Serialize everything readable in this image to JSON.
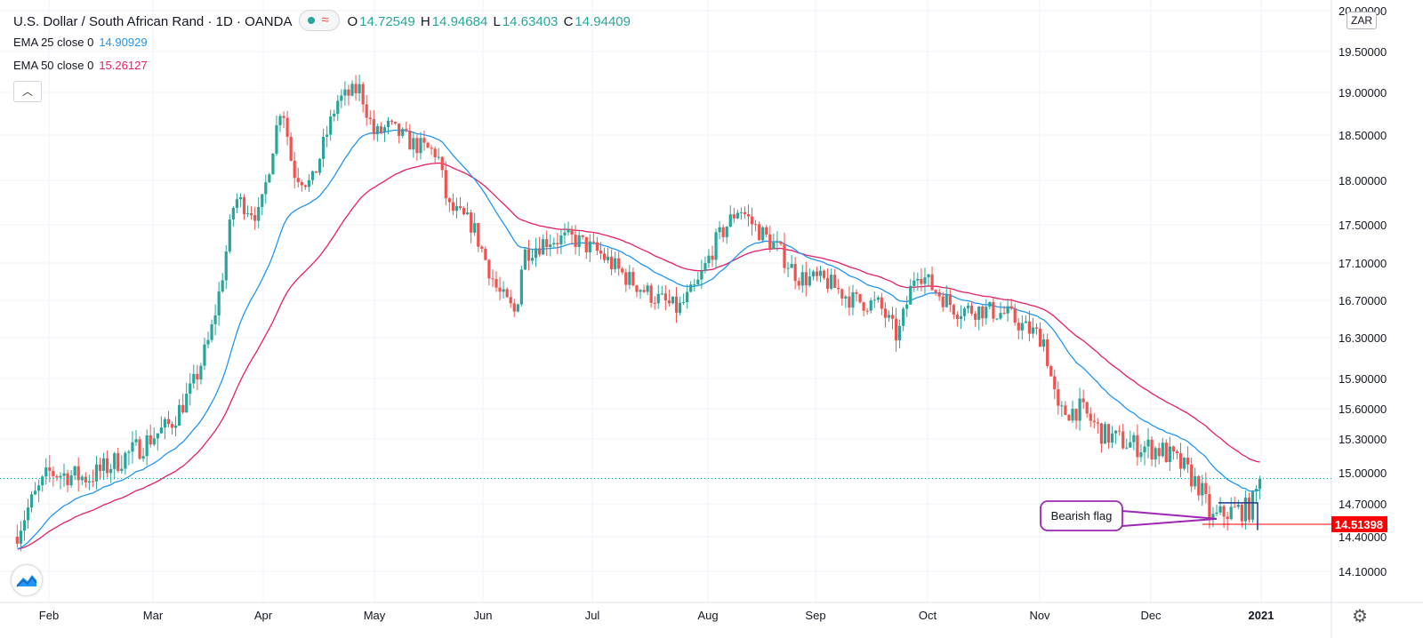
{
  "header": {
    "symbol_title": "U.S. Dollar / South African Rand · 1D · OANDA",
    "ohlc": {
      "o_label": "O",
      "o": "14.72549",
      "h_label": "H",
      "h": "14.94684",
      "l_label": "L",
      "l": "14.63403",
      "c_label": "C",
      "c": "14.94409"
    },
    "indicators": [
      {
        "label": "EMA 25 close 0",
        "value": "14.90929",
        "color": "#2196f3"
      },
      {
        "label": "EMA 50 close 0",
        "value": "15.26127",
        "color": "#e91e63"
      }
    ],
    "currency_badge": "ZAR"
  },
  "colors": {
    "up": "#26a69a",
    "down": "#ef5350",
    "ema25": "#2196f3",
    "ema50": "#e91e63",
    "annotation": "#9c27b0",
    "price_tag": "#ff0000"
  },
  "icons": {
    "collapse": "chevron-up-icon",
    "logo": "tradingview-logo-icon",
    "settings": "gear-icon"
  },
  "chart_data": {
    "type": "candlestick",
    "y_ticks": [
      "20.00000",
      "19.50000",
      "19.00000",
      "18.50000",
      "18.00000",
      "17.50000",
      "17.10000",
      "16.70000",
      "16.30000",
      "15.90000",
      "15.60000",
      "15.30000",
      "15.00000",
      "14.70000",
      "14.40000",
      "14.10000"
    ],
    "x_ticks": [
      "Feb",
      "Mar",
      "Apr",
      "May",
      "Jun",
      "Jul",
      "Aug",
      "Sep",
      "Oct",
      "Nov",
      "Dec",
      "2021"
    ],
    "price_label": "14.51398",
    "last_close": 14.94409,
    "annotation": {
      "text": "Bearish flag",
      "flag_top": 14.71,
      "flag_bottom": 14.46
    },
    "close_anchors": [
      [
        "Jan 15",
        14.45
      ],
      [
        "Jan 22",
        14.7
      ],
      [
        "Feb 1",
        15.0
      ],
      [
        "Feb 12",
        14.95
      ],
      [
        "Feb 25",
        15.2
      ],
      [
        "Mar 6",
        15.45
      ],
      [
        "Mar 12",
        15.8
      ],
      [
        "Mar 17",
        16.3
      ],
      [
        "Mar 20",
        16.85
      ],
      [
        "Mar 24",
        17.8
      ],
      [
        "Mar 31",
        17.6
      ],
      [
        "Apr 6",
        18.9
      ],
      [
        "Apr 9",
        18.1
      ],
      [
        "Apr 14",
        17.95
      ],
      [
        "Apr 21",
        18.9
      ],
      [
        "Apr 27",
        19.05
      ],
      [
        "May 1",
        18.5
      ],
      [
        "May 5",
        18.6
      ],
      [
        "May 12",
        18.4
      ],
      [
        "May 19",
        18.3
      ],
      [
        "May 22",
        17.7
      ],
      [
        "May 29",
        17.5
      ],
      [
        "Jun 5",
        16.8
      ],
      [
        "Jun 10",
        16.55
      ],
      [
        "Jun 12",
        17.2
      ],
      [
        "Jun 19",
        17.35
      ],
      [
        "Jun 26",
        17.35
      ],
      [
        "Jul 3",
        17.2
      ],
      [
        "Jul 10",
        16.95
      ],
      [
        "Jul 17",
        16.75
      ],
      [
        "Jul 24",
        16.6
      ],
      [
        "Jul 29",
        16.85
      ],
      [
        "Aug 3",
        17.3
      ],
      [
        "Aug 10",
        17.7
      ],
      [
        "Aug 14",
        17.5
      ],
      [
        "Aug 21",
        17.25
      ],
      [
        "Aug 27",
        16.95
      ],
      [
        "Sep 4",
        16.9
      ],
      [
        "Sep 11",
        16.7
      ],
      [
        "Sep 18",
        16.65
      ],
      [
        "Sep 23",
        16.3
      ],
      [
        "Sep 28",
        17.05
      ],
      [
        "Oct 2",
        16.85
      ],
      [
        "Oct 9",
        16.6
      ],
      [
        "Oct 16",
        16.6
      ],
      [
        "Oct 23",
        16.55
      ],
      [
        "Oct 28",
        16.4
      ],
      [
        "Nov 2",
        16.3
      ],
      [
        "Nov 6",
        15.55
      ],
      [
        "Nov 12",
        15.6
      ],
      [
        "Nov 18",
        15.35
      ],
      [
        "Nov 26",
        15.25
      ],
      [
        "Dec 4",
        15.2
      ],
      [
        "Dec 10",
        15.05
      ],
      [
        "Dec 15",
        14.85
      ],
      [
        "Dec 18",
        14.55
      ],
      [
        "Dec 22",
        14.62
      ],
      [
        "Dec 29",
        14.66
      ],
      [
        "Jan 1",
        14.94
      ]
    ]
  }
}
